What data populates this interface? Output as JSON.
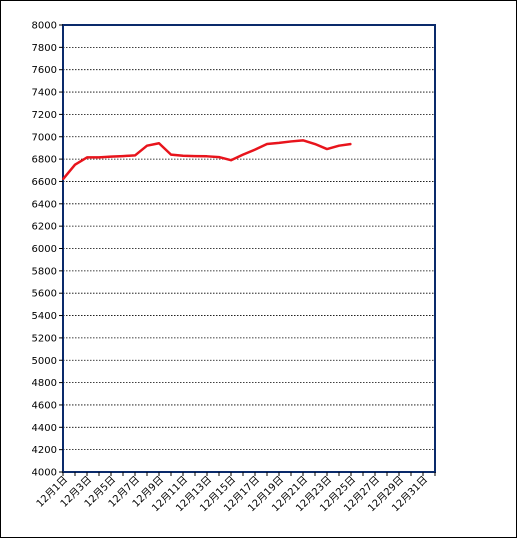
{
  "chart_data": {
    "type": "line",
    "ylim": [
      4000,
      8000
    ],
    "y_ticks": [
      4000,
      4200,
      4400,
      4600,
      4800,
      5000,
      5200,
      5400,
      5600,
      5800,
      6000,
      6200,
      6400,
      6600,
      6800,
      7000,
      7200,
      7400,
      7600,
      7800,
      8000
    ],
    "x_day_range": [
      1,
      32
    ],
    "x_tick_labels": [
      "12月1日",
      "12月3日",
      "12月5日",
      "12月7日",
      "12月9日",
      "12月11日",
      "12月13日",
      "12月15日",
      "12月17日",
      "12月19日",
      "12月21日",
      "12月23日",
      "12月25日",
      "12月27日",
      "12月29日",
      "12月31日"
    ],
    "grid": true,
    "line_color": "#e8141c",
    "plot_border_color": "#0a2a6b",
    "series": [
      {
        "x": [
          1,
          2,
          3,
          4,
          5,
          6,
          7,
          8,
          9,
          10,
          11,
          12,
          13,
          14,
          15,
          16,
          17,
          18,
          19,
          20,
          21,
          22,
          23,
          24,
          25
        ],
        "values": [
          6620,
          6750,
          6815,
          6815,
          6822,
          6827,
          6833,
          6920,
          6942,
          6840,
          6830,
          6827,
          6825,
          6818,
          6790,
          6840,
          6885,
          6935,
          6945,
          6958,
          6968,
          6935,
          6890,
          6920,
          6935
        ]
      }
    ]
  }
}
